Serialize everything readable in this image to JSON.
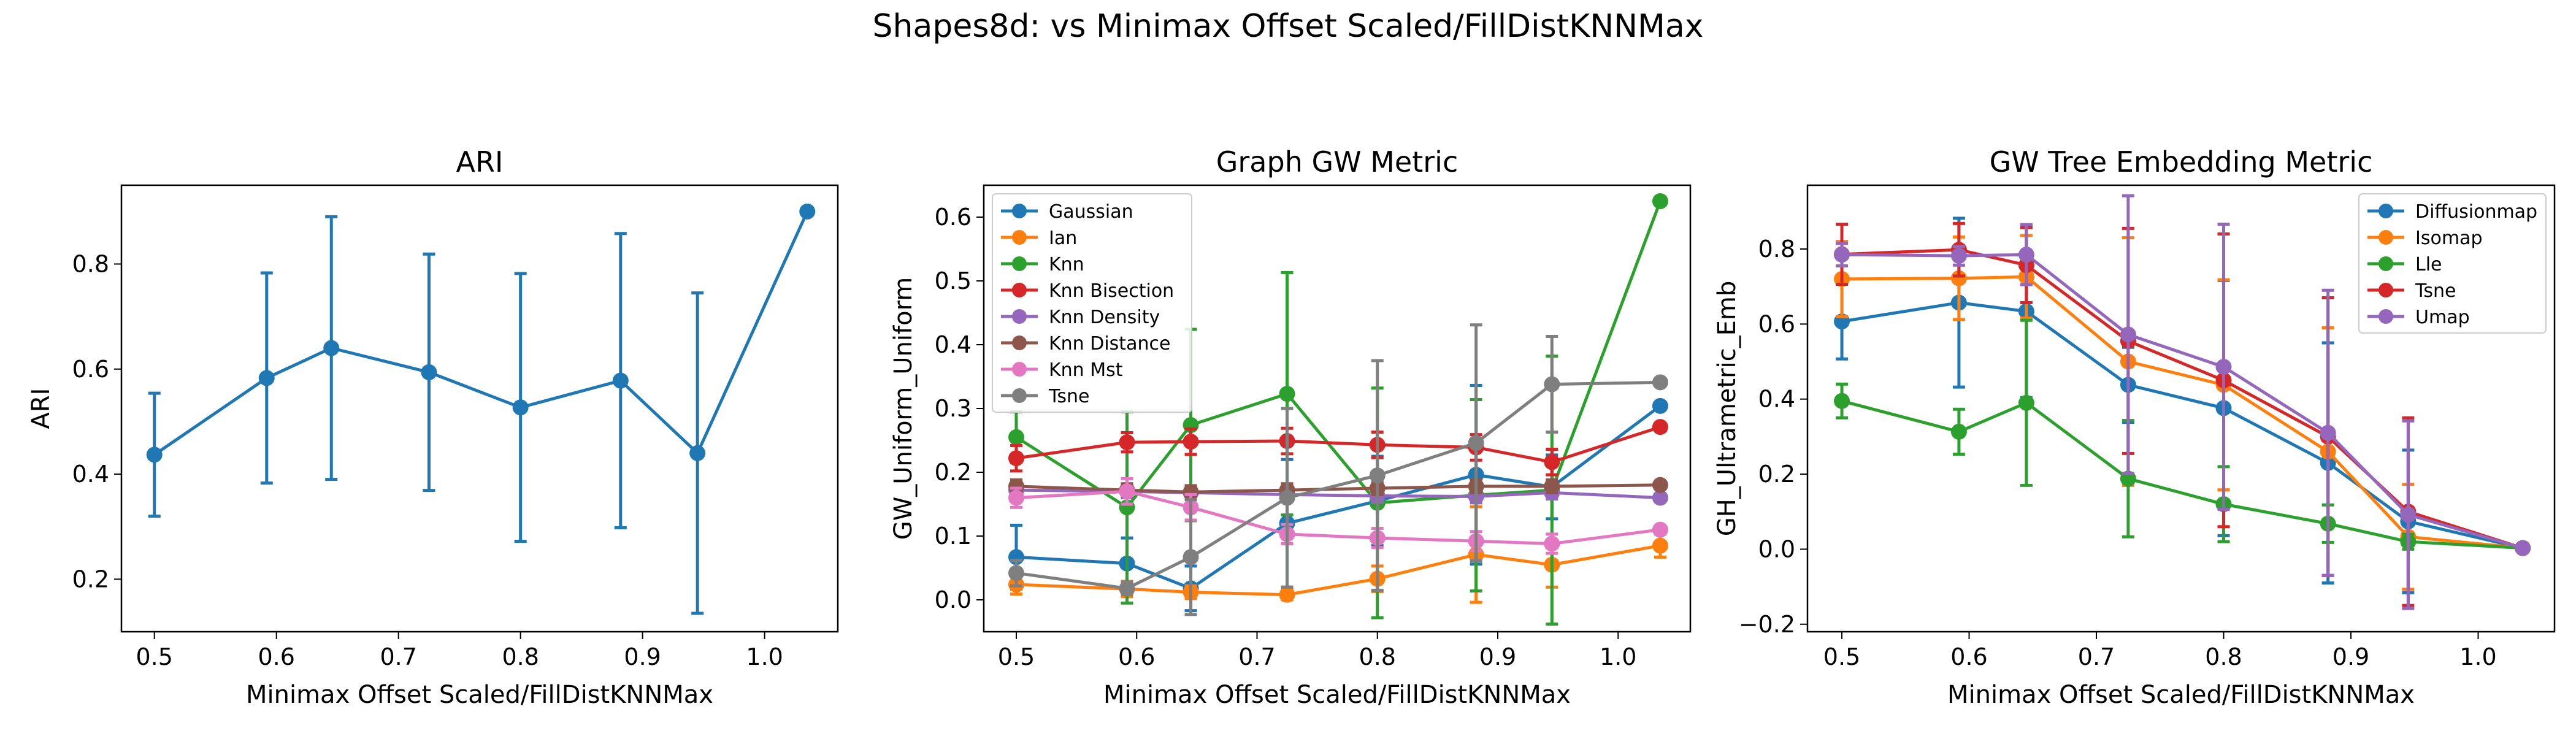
{
  "suptitle": "Shapes8d: vs Minimax Offset Scaled/FillDistKNNMax",
  "chart_data": [
    {
      "type": "line",
      "title": "ARI",
      "xlabel": "Minimax Offset Scaled/FillDistKNNMax",
      "ylabel": "ARI",
      "x": [
        0.5,
        0.592,
        0.645,
        0.725,
        0.8,
        0.882,
        0.945,
        1.035
      ],
      "xlim": [
        0.473,
        1.06
      ],
      "ylim": [
        0.1,
        0.95
      ],
      "xticks": [
        0.5,
        0.6,
        0.7,
        0.8,
        0.9,
        1.0
      ],
      "xtick_labels": [
        "0.5",
        "0.6",
        "0.7",
        "0.8",
        "0.9",
        "1.0"
      ],
      "yticks": [
        0.2,
        0.4,
        0.6,
        0.8
      ],
      "ytick_labels": [
        "0.2",
        "0.4",
        "0.6",
        "0.8"
      ],
      "legend": null,
      "series": [
        {
          "color": "#1f77b4",
          "values": [
            0.437,
            0.583,
            0.64,
            0.594,
            0.527,
            0.578,
            0.44,
            0.9
          ],
          "err": [
            0.117,
            0.2,
            0.25,
            0.225,
            0.255,
            0.28,
            0.305,
            0.0
          ]
        }
      ]
    },
    {
      "type": "line",
      "title": "Graph GW Metric",
      "xlabel": "Minimax Offset Scaled/FillDistKNNMax",
      "ylabel": "GW_Uniform_Uniform",
      "x": [
        0.5,
        0.592,
        0.645,
        0.725,
        0.8,
        0.882,
        0.945,
        1.035
      ],
      "xlim": [
        0.473,
        1.06
      ],
      "ylim": [
        -0.05,
        0.65
      ],
      "xticks": [
        0.5,
        0.6,
        0.7,
        0.8,
        0.9,
        1.0
      ],
      "xtick_labels": [
        "0.5",
        "0.6",
        "0.7",
        "0.8",
        "0.9",
        "1.0"
      ],
      "yticks": [
        0.0,
        0.1,
        0.2,
        0.3,
        0.4,
        0.5,
        0.6
      ],
      "ytick_labels": [
        "0.0",
        "0.1",
        "0.2",
        "0.3",
        "0.4",
        "0.5",
        "0.6"
      ],
      "legend": "upper-left",
      "series": [
        {
          "name": "Gaussian",
          "color": "#1f77b4",
          "values": [
            0.067,
            0.057,
            0.018,
            0.12,
            0.155,
            0.196,
            0.177,
            0.304
          ],
          "err": [
            0.05,
            0.04,
            0.035,
            0.1,
            0.07,
            0.14,
            0.05,
            0.0
          ]
        },
        {
          "name": "Ian",
          "color": "#ff7f0e",
          "values": [
            0.024,
            0.017,
            0.012,
            0.008,
            0.033,
            0.071,
            0.055,
            0.085
          ],
          "err": [
            0.015,
            0.012,
            0.01,
            0.008,
            0.02,
            0.075,
            0.035,
            0.018
          ]
        },
        {
          "name": "Knn",
          "color": "#2ca02c",
          "values": [
            0.255,
            0.145,
            0.274,
            0.323,
            0.152,
            0.164,
            0.172,
            0.625
          ],
          "err": [
            0.04,
            0.15,
            0.15,
            0.19,
            0.18,
            0.15,
            0.21,
            0.0
          ]
        },
        {
          "name": "Knn Bisection",
          "color": "#d62728",
          "values": [
            0.222,
            0.247,
            0.248,
            0.249,
            0.243,
            0.239,
            0.216,
            0.271
          ],
          "err": [
            0.02,
            0.015,
            0.02,
            0.02,
            0.02,
            0.02,
            0.02,
            0.0
          ]
        },
        {
          "name": "Knn Density",
          "color": "#9467bd",
          "values": [
            0.172,
            0.17,
            0.168,
            0.165,
            0.163,
            0.162,
            0.168,
            0.16
          ],
          "err": [
            0.01,
            0.01,
            0.01,
            0.01,
            0.01,
            0.01,
            0.01,
            0.0
          ]
        },
        {
          "name": "Knn Distance",
          "color": "#8c564b",
          "values": [
            0.178,
            0.172,
            0.169,
            0.172,
            0.175,
            0.178,
            0.178,
            0.18
          ],
          "err": [
            0.01,
            0.01,
            0.01,
            0.01,
            0.01,
            0.01,
            0.01,
            0.0
          ]
        },
        {
          "name": "Knn Mst",
          "color": "#e377c2",
          "values": [
            0.16,
            0.17,
            0.145,
            0.103,
            0.097,
            0.092,
            0.088,
            0.11
          ],
          "err": [
            0.015,
            0.02,
            0.02,
            0.015,
            0.015,
            0.015,
            0.015,
            0.0
          ]
        },
        {
          "name": "Tsne",
          "color": "#7f7f7f",
          "values": [
            0.042,
            0.018,
            0.067,
            0.16,
            0.195,
            0.246,
            0.338,
            0.341
          ],
          "err": [
            0.02,
            0.01,
            0.09,
            0.14,
            0.18,
            0.185,
            0.075,
            0.0
          ]
        }
      ]
    },
    {
      "type": "line",
      "title": "GW Tree Embedding Metric",
      "xlabel": "Minimax Offset Scaled/FillDistKNNMax",
      "ylabel": "GH_Ultrametric_Emb",
      "x": [
        0.5,
        0.592,
        0.645,
        0.725,
        0.8,
        0.882,
        0.945,
        1.035
      ],
      "xlim": [
        0.473,
        1.06
      ],
      "ylim": [
        -0.22,
        0.97
      ],
      "xticks": [
        0.5,
        0.6,
        0.7,
        0.8,
        0.9,
        1.0
      ],
      "xtick_labels": [
        "0.5",
        "0.6",
        "0.7",
        "0.8",
        "0.9",
        "1.0"
      ],
      "yticks": [
        -0.2,
        0.0,
        0.2,
        0.4,
        0.6,
        0.8
      ],
      "ytick_labels": [
        "−0.2",
        "0.0",
        "0.2",
        "0.4",
        "0.6",
        "0.8"
      ],
      "legend": "upper-right",
      "series": [
        {
          "name": "Diffusionmap",
          "color": "#1f77b4",
          "values": [
            0.607,
            0.657,
            0.634,
            0.438,
            0.376,
            0.23,
            0.074,
            0.003
          ],
          "err": [
            0.1,
            0.225,
            0.23,
            0.1,
            0.34,
            0.32,
            0.19,
            0.0
          ]
        },
        {
          "name": "Isomap",
          "color": "#ff7f0e",
          "values": [
            0.72,
            0.722,
            0.726,
            0.5,
            0.438,
            0.26,
            0.033,
            0.003
          ],
          "err": [
            0.1,
            0.11,
            0.11,
            0.33,
            0.28,
            0.33,
            0.14,
            0.0
          ]
        },
        {
          "name": "Lle",
          "color": "#2ca02c",
          "values": [
            0.395,
            0.313,
            0.39,
            0.188,
            0.12,
            0.068,
            0.02,
            0.003
          ],
          "err": [
            0.045,
            0.06,
            0.22,
            0.155,
            0.1,
            0.05,
            0.02,
            0.0
          ]
        },
        {
          "name": "Tsne",
          "color": "#d62728",
          "values": [
            0.786,
            0.798,
            0.757,
            0.555,
            0.45,
            0.3,
            0.1,
            0.003
          ],
          "err": [
            0.08,
            0.07,
            0.1,
            0.3,
            0.39,
            0.37,
            0.25,
            0.0
          ]
        },
        {
          "name": "Umap",
          "color": "#9467bd",
          "values": [
            0.785,
            0.782,
            0.785,
            0.572,
            0.486,
            0.31,
            0.092,
            0.003
          ],
          "err": [
            0.03,
            0.025,
            0.08,
            0.37,
            0.38,
            0.38,
            0.25,
            0.0
          ]
        }
      ]
    }
  ]
}
